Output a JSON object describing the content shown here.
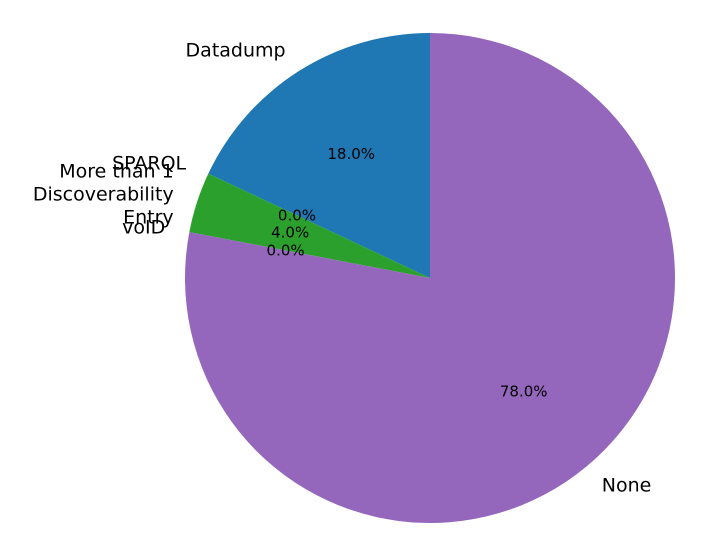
{
  "chart_data": {
    "type": "pie",
    "categories": [
      "Datadump",
      "SPARQL",
      "More than 1 Discoverability Entry",
      "voID",
      "None"
    ],
    "values": [
      18.0,
      0.0,
      4.0,
      0.0,
      78.0
    ],
    "percent_labels": [
      "18.0%",
      "0.0%",
      "4.0%",
      "0.0%",
      "78.0%"
    ],
    "label_lines": [
      [
        "Datadump"
      ],
      [
        "SPARQL"
      ],
      [
        "More than 1",
        "Discoverability",
        "Entry"
      ],
      [
        "voID"
      ],
      [
        "None"
      ]
    ],
    "colors": [
      "#1f77b4",
      "#ff7f0e",
      "#2ca02c",
      "#d62728",
      "#9467bd"
    ],
    "start_angle_deg": 90,
    "direction": "counterclockwise",
    "legend": "none"
  }
}
